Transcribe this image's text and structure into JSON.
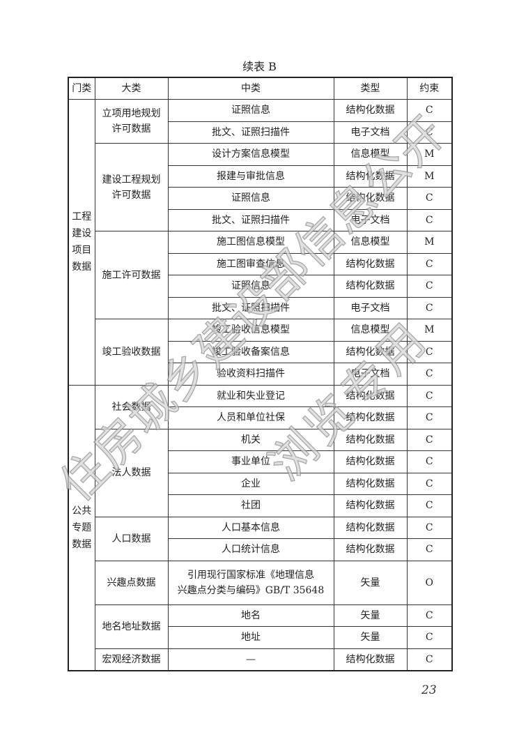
{
  "title": "续表 B",
  "headers": [
    "门类",
    "大类",
    "中类",
    "类型",
    "约束"
  ],
  "groups": [
    {
      "name": "工程\n建设\n项目\n数据",
      "categories": [
        {
          "name": "立项用地规划\n许可数据",
          "rows": [
            [
              "证照信息",
              "结构化数据",
              "C"
            ],
            [
              "批文、证照扫描件",
              "电子文档",
              "C"
            ]
          ]
        },
        {
          "name": "建设工程规划\n许可数据",
          "rows": [
            [
              "设计方案信息模型",
              "信息模型",
              "M"
            ],
            [
              "报建与审批信息",
              "结构化数据",
              "M"
            ],
            [
              "证照信息",
              "结构化数据",
              "C"
            ],
            [
              "批文、证照扫描件",
              "电子文档",
              "C"
            ]
          ]
        },
        {
          "name": "施工许可数据",
          "rows": [
            [
              "施工图信息模型",
              "信息模型",
              "M"
            ],
            [
              "施工图审查信息",
              "结构化数据",
              "C"
            ],
            [
              "证照信息",
              "结构化数据",
              "C"
            ],
            [
              "批文、证照扫描件",
              "电子文档",
              "C"
            ]
          ]
        },
        {
          "name": "竣工验收数据",
          "rows": [
            [
              "竣工验收信息模型",
              "信息模型",
              "M"
            ],
            [
              "竣工验收备案信息",
              "结构化数据",
              "C"
            ],
            [
              "验收资料扫描件",
              "电子文档",
              "C"
            ]
          ]
        }
      ]
    },
    {
      "name": "公共\n专题\n数据",
      "categories": [
        {
          "name": "社会数据",
          "rows": [
            [
              "就业和失业登记",
              "结构化数据",
              "C"
            ],
            [
              "人员和单位社保",
              "结构化数据",
              "C"
            ]
          ]
        },
        {
          "name": "法人数据",
          "rows": [
            [
              "机关",
              "结构化数据",
              "C"
            ],
            [
              "事业单位",
              "结构化数据",
              "C"
            ],
            [
              "企业",
              "结构化数据",
              "C"
            ],
            [
              "社团",
              "结构化数据",
              "C"
            ]
          ]
        },
        {
          "name": "人口数据",
          "rows": [
            [
              "人口基本信息",
              "结构化数据",
              "C"
            ],
            [
              "人口统计信息",
              "结构化数据",
              "C"
            ]
          ]
        },
        {
          "name": "兴趣点数据",
          "rows": [
            [
              "引用现行国家标准《地理信息\n兴趣点分类与编码》GB/T 35648",
              "矢量",
              "O"
            ]
          ]
        },
        {
          "name": "地名地址数据",
          "rows": [
            [
              "地名",
              "矢量",
              "C"
            ],
            [
              "地址",
              "矢量",
              "C"
            ]
          ]
        },
        {
          "name": "宏观经济数据",
          "rows": [
            [
              "—",
              "结构化数据",
              "C"
            ]
          ]
        }
      ]
    }
  ],
  "page_number": "23",
  "watermark": [
    "住房城乡建设部信息公开",
    "浏览专用"
  ]
}
